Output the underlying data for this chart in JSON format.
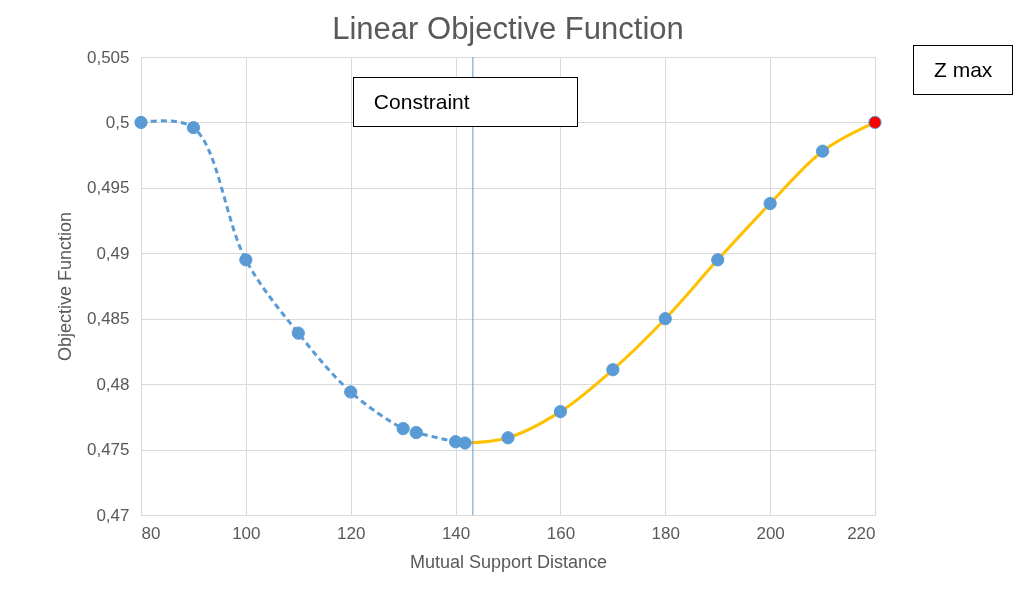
{
  "chart_data": {
    "type": "line",
    "title": "Linear Objective Function",
    "xlabel": "Mutual Support Distance",
    "ylabel": "Objective Function",
    "xlim": [
      80,
      220
    ],
    "xticks": [
      80,
      100,
      120,
      140,
      160,
      180,
      200,
      220
    ],
    "ylim": [
      0.47,
      0.505
    ],
    "yticks": [
      {
        "value": 0.47,
        "label": "0,47"
      },
      {
        "value": 0.475,
        "label": "0,475"
      },
      {
        "value": 0.48,
        "label": "0,48"
      },
      {
        "value": 0.485,
        "label": "0,485"
      },
      {
        "value": 0.49,
        "label": "0,49"
      },
      {
        "value": 0.495,
        "label": "0,495"
      },
      {
        "value": 0.5,
        "label": "0,5"
      },
      {
        "value": 0.505,
        "label": "0,505"
      }
    ],
    "grid": true,
    "series": [
      {
        "type": "line",
        "line_style": "dashed",
        "marker": "none",
        "color": "#5b9bd5",
        "x": [
          80,
          90,
          100,
          110,
          120,
          130,
          132.5,
          140,
          141.8
        ],
        "values": [
          0.5,
          0.4996,
          0.4895,
          0.4839,
          0.4794,
          0.4766,
          0.4763,
          0.4756,
          0.4755
        ]
      },
      {
        "type": "line",
        "line_style": "solid",
        "marker": "none",
        "color": "#ffc000",
        "x": [
          141.8,
          150,
          160,
          170,
          180,
          190,
          200,
          210,
          220
        ],
        "values": [
          0.4755,
          0.4759,
          0.4779,
          0.4811,
          0.485,
          0.4895,
          0.4938,
          0.4978,
          0.5
        ]
      },
      {
        "type": "scatter",
        "marker": "circle",
        "color": "#5b9bd5",
        "x": [
          80,
          90,
          100,
          110,
          120,
          130,
          132.5,
          140,
          141.8,
          150,
          160,
          170,
          180,
          190,
          200,
          210
        ],
        "values": [
          0.5,
          0.4996,
          0.4895,
          0.4839,
          0.4794,
          0.4766,
          0.4763,
          0.4756,
          0.4755,
          0.4759,
          0.4779,
          0.4811,
          0.485,
          0.4895,
          0.4938,
          0.4978
        ]
      },
      {
        "type": "scatter",
        "marker": "circle",
        "color": "#ff0000",
        "x": [
          220
        ],
        "values": [
          0.5
        ]
      }
    ],
    "ref_lines": [
      {
        "axis": "x",
        "value": 143.3,
        "label": "Constraint",
        "color": "#5b9bd5"
      }
    ],
    "annotations": [
      "Z max"
    ]
  }
}
